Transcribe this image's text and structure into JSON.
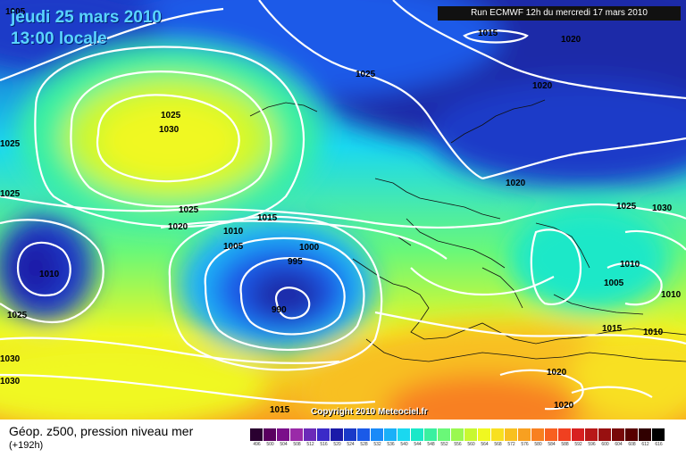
{
  "header": {
    "date_line": "jeudi 25 mars 2010",
    "time_line": "13:00 locale",
    "run_info": "Run ECMWF 12h du mercredi 17 mars 2010"
  },
  "footer": {
    "copyright": "Copyright 2010 Meteociel.fr",
    "legend_title": "Géop. z500, pression niveau mer",
    "legend_subtitle": "(+192h)"
  },
  "scale": {
    "values": [
      "496",
      "500",
      "504",
      "508",
      "512",
      "516",
      "520",
      "524",
      "528",
      "532",
      "536",
      "540",
      "544",
      "548",
      "552",
      "556",
      "560",
      "564",
      "568",
      "572",
      "576",
      "580",
      "584",
      "588",
      "592",
      "596",
      "600",
      "604",
      "608",
      "612",
      "616"
    ],
    "colors": [
      "#2a0030",
      "#5a0060",
      "#7a0f8a",
      "#9a2aa8",
      "#6b2ab8",
      "#3b2ac8",
      "#1a1aa8",
      "#1a3ac8",
      "#1a5ae8",
      "#1a8af8",
      "#1ab0f8",
      "#1ad8f0",
      "#1ae8c8",
      "#3af0a0",
      "#6af878",
      "#9af850",
      "#c8f830",
      "#f0f820",
      "#f8e020",
      "#f8c020",
      "#f8a020",
      "#f88020",
      "#f86020",
      "#f04020",
      "#d82020",
      "#b81818",
      "#981010",
      "#780808",
      "#580000",
      "#300000",
      "#000000"
    ]
  },
  "isobars": [
    {
      "label": "1005",
      "pos": "nw-corner"
    },
    {
      "label": "1025",
      "pos": "greenland"
    },
    {
      "label": "1030",
      "pos": "greenland-high"
    },
    {
      "label": "1025",
      "pos": "west-edge-1"
    },
    {
      "label": "1025",
      "pos": "west-edge-2"
    },
    {
      "label": "1025",
      "pos": "mid-atlantic"
    },
    {
      "label": "1020",
      "pos": "mid-atlantic-2"
    },
    {
      "label": "1010",
      "pos": "mid-atlantic-3"
    },
    {
      "label": "1005",
      "pos": "mid-atlantic-4"
    },
    {
      "label": "1015",
      "pos": "mid-atlantic-5"
    },
    {
      "label": "1000",
      "pos": "low-ring-1"
    },
    {
      "label": "995",
      "pos": "low-ring-2"
    },
    {
      "label": "990",
      "pos": "low-center"
    },
    {
      "label": "1010",
      "pos": "west-low"
    },
    {
      "label": "1025",
      "pos": "sw"
    },
    {
      "label": "1030",
      "pos": "sw-2"
    },
    {
      "label": "1030",
      "pos": "sw-3"
    },
    {
      "label": "1015",
      "pos": "south-bottom"
    },
    {
      "label": "1025",
      "pos": "north-atlantic"
    },
    {
      "label": "1015",
      "pos": "scandinavia-top"
    },
    {
      "label": "1020",
      "pos": "scandinavia-top-2"
    },
    {
      "label": "1020",
      "pos": "scandinavia"
    },
    {
      "label": "1020",
      "pos": "europe"
    },
    {
      "label": "1025",
      "pos": "east-europe"
    },
    {
      "label": "1030",
      "pos": "east-edge"
    },
    {
      "label": "1010",
      "pos": "east-1"
    },
    {
      "label": "1005",
      "pos": "east-2"
    },
    {
      "label": "1010",
      "pos": "east-3"
    },
    {
      "label": "1015",
      "pos": "turkey"
    },
    {
      "label": "1010",
      "pos": "east-4"
    },
    {
      "label": "1020",
      "pos": "africa-1"
    },
    {
      "label": "1020",
      "pos": "africa-2"
    }
  ]
}
